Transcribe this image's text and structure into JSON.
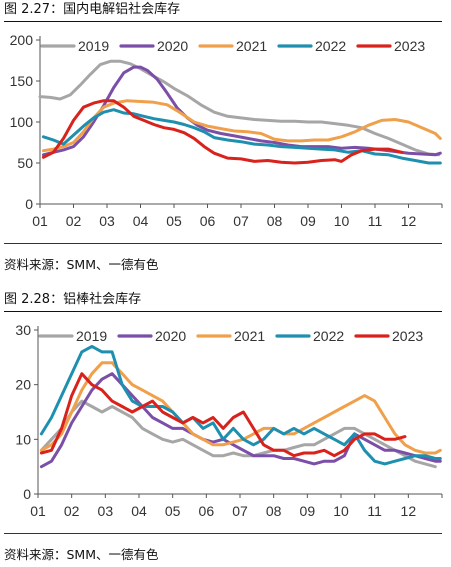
{
  "colors": {
    "2019": "#a6a6a6",
    "2020": "#7b4fa8",
    "2021": "#f0a04b",
    "2022": "#1f8fb0",
    "2023": "#d9221c"
  },
  "figure1": {
    "title": "图 2.27：国内电解铝社会库存",
    "source": "资料来源：SMM、一德有色"
  },
  "figure2": {
    "title": "图 2.28：铝棒社会库存",
    "source": "资料来源：SMM、一德有色"
  },
  "chart_data": [
    {
      "type": "line",
      "title": "",
      "xlabel": "",
      "ylabel": "",
      "categories": [
        "01",
        "02",
        "03",
        "04",
        "05",
        "06",
        "07",
        "08",
        "09",
        "10",
        "11",
        "12"
      ],
      "yticks": [
        0,
        50,
        100,
        150,
        200
      ],
      "ylim": [
        0,
        200
      ],
      "xlim": [
        1,
        13
      ],
      "legend_position": "top",
      "grid": false,
      "series": [
        {
          "name": "2019",
          "color_key": "2019",
          "x": [
            1,
            1.3,
            1.6,
            1.9,
            2.2,
            2.5,
            2.8,
            3.1,
            3.4,
            3.7,
            4.0,
            4.3,
            4.7,
            5.0,
            5.4,
            5.8,
            6.2,
            6.6,
            7.0,
            7.4,
            7.8,
            8.2,
            8.6,
            9.0,
            9.4,
            9.8,
            10.2,
            10.6,
            11.0,
            11.4,
            11.8,
            12.2,
            12.6,
            12.9
          ],
          "y": [
            131,
            130,
            128,
            133,
            145,
            158,
            170,
            174,
            174,
            171,
            165,
            158,
            149,
            141,
            132,
            121,
            112,
            107,
            105,
            103,
            102,
            101,
            101,
            100,
            100,
            98,
            96,
            93,
            86,
            80,
            73,
            66,
            61,
            60
          ]
        },
        {
          "name": "2020",
          "color_key": "2020",
          "x": [
            1.1,
            1.4,
            1.7,
            2.0,
            2.3,
            2.6,
            2.9,
            3.2,
            3.5,
            3.8,
            4.0,
            4.2,
            4.5,
            4.8,
            5.1,
            5.4,
            5.7,
            6.0,
            6.4,
            6.8,
            7.2,
            7.6,
            8.0,
            8.4,
            8.8,
            9.2,
            9.6,
            10.0,
            10.4,
            10.8,
            11.2,
            11.6,
            12.0,
            12.4,
            12.8,
            12.95
          ],
          "y": [
            60,
            63,
            66,
            70,
            82,
            100,
            120,
            142,
            160,
            167,
            167,
            163,
            152,
            135,
            117,
            105,
            96,
            90,
            86,
            83,
            80,
            77,
            75,
            72,
            70,
            70,
            70,
            68,
            69,
            68,
            66,
            64,
            62,
            61,
            60,
            62
          ]
        },
        {
          "name": "2021",
          "color_key": "2021",
          "x": [
            1.1,
            1.4,
            1.7,
            2.0,
            2.3,
            2.6,
            2.9,
            3.2,
            3.6,
            4.0,
            4.4,
            4.8,
            5.2,
            5.6,
            6.0,
            6.4,
            6.8,
            7.2,
            7.6,
            8.0,
            8.4,
            8.8,
            9.2,
            9.6,
            10.0,
            10.4,
            10.8,
            11.2,
            11.6,
            12.0,
            12.4,
            12.8,
            12.95
          ],
          "y": [
            65,
            67,
            70,
            75,
            88,
            105,
            118,
            123,
            126,
            125,
            124,
            121,
            111,
            100,
            95,
            92,
            89,
            88,
            86,
            79,
            77,
            77,
            78,
            78,
            82,
            88,
            96,
            102,
            103,
            100,
            93,
            86,
            80
          ]
        },
        {
          "name": "2022",
          "color_key": "2022",
          "x": [
            1.1,
            1.4,
            1.7,
            2.0,
            2.3,
            2.6,
            2.9,
            3.2,
            3.5,
            3.8,
            4.1,
            4.4,
            4.7,
            5.0,
            5.3,
            5.6,
            5.9,
            6.2,
            6.6,
            7.0,
            7.4,
            7.8,
            8.2,
            8.6,
            9.0,
            9.4,
            9.8,
            10.2,
            10.6,
            11.0,
            11.4,
            11.8,
            12.2,
            12.6,
            12.95
          ],
          "y": [
            82,
            78,
            73,
            84,
            95,
            105,
            112,
            115,
            111,
            110,
            107,
            104,
            102,
            100,
            97,
            93,
            88,
            81,
            78,
            76,
            73,
            72,
            70,
            69,
            68,
            67,
            66,
            63,
            65,
            61,
            60,
            56,
            53,
            50,
            50
          ]
        },
        {
          "name": "2023",
          "color_key": "2023",
          "x": [
            1.1,
            1.4,
            1.7,
            2.0,
            2.3,
            2.6,
            2.9,
            3.2,
            3.5,
            3.8,
            4.1,
            4.4,
            4.7,
            5.0,
            5.3,
            5.6,
            5.9,
            6.2,
            6.6,
            7.0,
            7.4,
            7.8,
            8.2,
            8.6,
            9.0,
            9.4,
            9.8,
            10.0,
            10.3,
            10.6,
            11.0,
            11.4,
            11.8
          ],
          "y": [
            57,
            63,
            80,
            102,
            118,
            123,
            126,
            126,
            118,
            107,
            102,
            97,
            93,
            91,
            87,
            80,
            70,
            62,
            56,
            55,
            52,
            53,
            51,
            50,
            51,
            53,
            54,
            52,
            60,
            65,
            67,
            67,
            63
          ]
        }
      ]
    },
    {
      "type": "line",
      "title": "",
      "xlabel": "",
      "ylabel": "",
      "categories": [
        "01",
        "02",
        "03",
        "04",
        "05",
        "06",
        "07",
        "08",
        "09",
        "10",
        "11",
        "12"
      ],
      "yticks": [
        0,
        10,
        20,
        30
      ],
      "ylim": [
        0,
        30
      ],
      "xlim": [
        1,
        13
      ],
      "legend_position": "top",
      "grid": false,
      "series": [
        {
          "name": "2019",
          "color_key": "2019",
          "x": [
            1.1,
            1.4,
            1.7,
            2.0,
            2.3,
            2.6,
            2.9,
            3.2,
            3.5,
            3.8,
            4.1,
            4.4,
            4.7,
            5.0,
            5.3,
            5.6,
            5.9,
            6.2,
            6.5,
            6.8,
            7.1,
            7.4,
            7.7,
            8.0,
            8.3,
            8.6,
            8.9,
            9.2,
            9.5,
            9.8,
            10.1,
            10.4,
            10.7,
            11.0,
            11.3,
            11.6,
            11.9,
            12.2,
            12.5,
            12.8
          ],
          "y": [
            8,
            10,
            12,
            15,
            17,
            16,
            15,
            16,
            15,
            14,
            12,
            11,
            10,
            9.5,
            10,
            9,
            8,
            7,
            7,
            7.5,
            7,
            7,
            7.5,
            8,
            8,
            8.5,
            9,
            9,
            10,
            11,
            12,
            12,
            11,
            10,
            9,
            8,
            7,
            6,
            5.5,
            5
          ]
        },
        {
          "name": "2020",
          "color_key": "2020",
          "x": [
            1.1,
            1.4,
            1.7,
            2.0,
            2.3,
            2.6,
            2.9,
            3.2,
            3.5,
            3.8,
            4.1,
            4.4,
            4.7,
            5.0,
            5.3,
            5.6,
            5.9,
            6.2,
            6.5,
            6.8,
            7.1,
            7.4,
            7.7,
            8.0,
            8.3,
            8.6,
            8.9,
            9.2,
            9.5,
            9.8,
            10.1,
            10.4,
            10.7,
            11.0,
            11.3,
            11.6,
            11.9,
            12.2,
            12.5,
            12.8,
            12.95
          ],
          "y": [
            5,
            6,
            9,
            13,
            16,
            19,
            21,
            22,
            20,
            18,
            16,
            14,
            13,
            12,
            12,
            11,
            10,
            9.5,
            10,
            9,
            8,
            7,
            7,
            7,
            6.5,
            6.5,
            6,
            5.5,
            6,
            6,
            7,
            11,
            10,
            9,
            8,
            8,
            7.5,
            7,
            6.5,
            6,
            6
          ]
        },
        {
          "name": "2021",
          "color_key": "2021",
          "x": [
            1.1,
            1.4,
            1.7,
            2.0,
            2.3,
            2.6,
            2.9,
            3.2,
            3.5,
            3.8,
            4.1,
            4.4,
            4.7,
            5.0,
            5.3,
            5.6,
            5.9,
            6.2,
            6.5,
            6.8,
            7.1,
            7.4,
            7.7,
            8.0,
            8.3,
            8.6,
            8.9,
            9.2,
            9.5,
            9.8,
            10.1,
            10.4,
            10.7,
            11.0,
            11.3,
            11.6,
            11.9,
            12.2,
            12.5,
            12.8,
            12.95
          ],
          "y": [
            8,
            9,
            11,
            15,
            19,
            22,
            24,
            24,
            22,
            20,
            19,
            18,
            17,
            15,
            13,
            11,
            10,
            9,
            9,
            9.5,
            10,
            11,
            12,
            12,
            11,
            11,
            12,
            13,
            14,
            15,
            16,
            17,
            18,
            17,
            14,
            11,
            9,
            8,
            7.5,
            7.5,
            8
          ]
        },
        {
          "name": "2022",
          "color_key": "2022",
          "x": [
            1.1,
            1.4,
            1.7,
            2.0,
            2.3,
            2.6,
            2.9,
            3.2,
            3.5,
            3.8,
            4.1,
            4.4,
            4.7,
            5.0,
            5.3,
            5.6,
            5.9,
            6.2,
            6.5,
            6.8,
            7.1,
            7.4,
            7.7,
            8.0,
            8.3,
            8.6,
            8.9,
            9.2,
            9.5,
            9.8,
            10.1,
            10.4,
            10.7,
            11.0,
            11.3,
            11.6,
            11.9,
            12.2,
            12.5,
            12.8,
            12.95
          ],
          "y": [
            11,
            14,
            18,
            22,
            26,
            27,
            26,
            26,
            20,
            17,
            16,
            16,
            16,
            15,
            13,
            14,
            12,
            13,
            10,
            12,
            10,
            9,
            10,
            12,
            11,
            12,
            11,
            12,
            11,
            10,
            9,
            11,
            8,
            6,
            5.5,
            6,
            6.5,
            7,
            7,
            6.5,
            6.5
          ]
        },
        {
          "name": "2023",
          "color_key": "2023",
          "x": [
            1.1,
            1.4,
            1.7,
            2.0,
            2.3,
            2.6,
            2.9,
            3.2,
            3.5,
            3.8,
            4.1,
            4.4,
            4.7,
            5.0,
            5.3,
            5.6,
            5.9,
            6.2,
            6.5,
            6.8,
            7.1,
            7.4,
            7.7,
            8.0,
            8.3,
            8.6,
            8.9,
            9.2,
            9.5,
            9.8,
            10.1,
            10.4,
            10.7,
            11.0,
            11.3,
            11.6,
            11.9
          ],
          "y": [
            7.5,
            8,
            12,
            18,
            22,
            20,
            19,
            17,
            16,
            15,
            16,
            17,
            15,
            14,
            13,
            14,
            13,
            14,
            12,
            14,
            15,
            12,
            9,
            8,
            8,
            7,
            7.5,
            7.5,
            8,
            7,
            8,
            10,
            11,
            11,
            10,
            10,
            10.5
          ]
        }
      ]
    }
  ]
}
